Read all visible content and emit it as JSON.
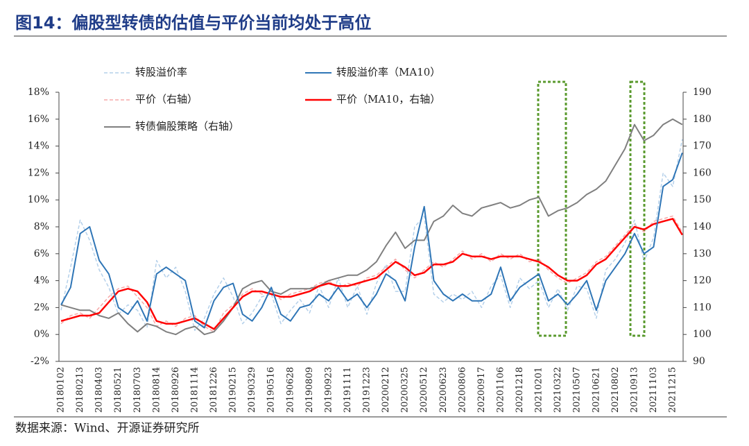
{
  "chart_data": {
    "type": "line",
    "title": "图14：偏股型转债的估值与平价当前均处于高位",
    "source": "数据来源：Wind、开源证券研究所",
    "categories": [
      "20180102",
      null,
      "20180213",
      null,
      "20180403",
      null,
      "20180521",
      null,
      "20180703",
      null,
      "20180814",
      null,
      "20180926",
      null,
      "20181114",
      null,
      "20181226",
      null,
      "20190215",
      null,
      "20190329",
      null,
      "20190516",
      null,
      "20190628",
      null,
      "20190809",
      null,
      "20190923",
      null,
      "20191111",
      null,
      "20191223",
      null,
      "20200212",
      null,
      "20200325",
      null,
      "20200512",
      null,
      "20200623",
      null,
      "20200806",
      null,
      "20200917",
      null,
      "20201106",
      null,
      "20201218",
      null,
      "20210201",
      null,
      "20210322",
      null,
      "20210507",
      null,
      "20210621",
      null,
      "20210802",
      null,
      "20210913",
      null,
      "20211103",
      null,
      "20211215",
      null
    ],
    "series": [
      {
        "name": "转股溢价率",
        "color": "#b4d0ea",
        "dashed": true,
        "axis": "y",
        "width": 1.5,
        "values": [
          1.8,
          5.0,
          8.5,
          7.0,
          4.8,
          3.5,
          1.5,
          2.2,
          1.8,
          0.5,
          5.5,
          4.2,
          5.0,
          3.2,
          0.3,
          1.2,
          3.0,
          4.2,
          2.8,
          0.8,
          1.6,
          2.8,
          3.0,
          0.8,
          1.8,
          2.6,
          1.6,
          3.6,
          2.0,
          4.2,
          2.0,
          3.6,
          1.5,
          3.8,
          5.2,
          3.2,
          3.2,
          8.0,
          8.8,
          3.0,
          2.4,
          3.0,
          2.6,
          3.2,
          2.0,
          3.6,
          4.4,
          2.0,
          4.2,
          3.4,
          4.0,
          2.0,
          3.4,
          1.8,
          3.6,
          3.4,
          1.2,
          4.8,
          5.6,
          6.8,
          8.5,
          5.4,
          7.2,
          12.0,
          11.0,
          14.5
        ]
      },
      {
        "name": "转股溢价率（MA10）",
        "color": "#2e75b6",
        "dashed": false,
        "axis": "y",
        "width": 2,
        "values": [
          2.2,
          3.5,
          7.5,
          8.0,
          5.5,
          4.5,
          2.0,
          1.5,
          2.5,
          1.0,
          4.5,
          5.0,
          4.5,
          4.0,
          1.0,
          0.5,
          2.5,
          3.5,
          3.8,
          1.5,
          1.0,
          2.0,
          3.5,
          1.5,
          1.0,
          2.0,
          2.2,
          3.0,
          2.5,
          3.5,
          2.5,
          3.0,
          2.0,
          3.0,
          4.5,
          4.0,
          2.5,
          6.5,
          9.5,
          4.0,
          3.0,
          2.5,
          3.0,
          2.5,
          2.5,
          3.0,
          5.0,
          2.5,
          3.5,
          4.0,
          4.5,
          2.5,
          3.0,
          2.2,
          3.0,
          4.0,
          1.8,
          4.0,
          5.0,
          6.0,
          7.5,
          6.0,
          6.5,
          11.0,
          11.5,
          13.5
        ]
      },
      {
        "name": "平价（右轴）",
        "color": "#f6a8a8",
        "dashed": true,
        "axis": "y2",
        "width": 1.5,
        "values": [
          104,
          107,
          108,
          106,
          110,
          114,
          117,
          118,
          114,
          110,
          103,
          105,
          103,
          106,
          107,
          103,
          101,
          108,
          111,
          115,
          117,
          115,
          116,
          113,
          115,
          116,
          117,
          119,
          120,
          117,
          119,
          118,
          121,
          122,
          125,
          128,
          124,
          121,
          124,
          127,
          125,
          128,
          131,
          128,
          130,
          127,
          130,
          128,
          130,
          127,
          128,
          124,
          121,
          119,
          121,
          123,
          127,
          129,
          133,
          137,
          141,
          138,
          142,
          143,
          144,
          138
        ]
      },
      {
        "name": "平价（MA10，右轴）",
        "color": "#ff0000",
        "dashed": false,
        "axis": "y2",
        "width": 2.5,
        "values": [
          105,
          106,
          107,
          107,
          108,
          112,
          116,
          117,
          116,
          112,
          105,
          104,
          104,
          105,
          106,
          104,
          102,
          106,
          110,
          114,
          116,
          116,
          115,
          114,
          114,
          115,
          116,
          118,
          119,
          118,
          118,
          119,
          120,
          121,
          124,
          127,
          125,
          122,
          123,
          126,
          126,
          127,
          130,
          129,
          129,
          128,
          129,
          129,
          129,
          128,
          127,
          125,
          122,
          120,
          120,
          122,
          126,
          128,
          132,
          136,
          140,
          139,
          141,
          142,
          143,
          137
        ]
      },
      {
        "name": "转债偏股策略（右轴）",
        "color": "#7f7f7f",
        "dashed": false,
        "axis": "y2",
        "width": 2,
        "values": [
          111,
          110,
          109,
          109,
          107,
          106,
          108,
          104,
          101,
          104,
          103,
          101,
          100,
          102,
          103,
          100,
          101,
          105,
          110,
          117,
          119,
          120,
          116,
          115,
          117,
          117,
          117,
          118,
          120,
          121,
          122,
          122,
          124,
          127,
          133,
          138,
          132,
          135,
          135,
          142,
          144,
          148,
          145,
          144,
          147,
          148,
          149,
          147,
          148,
          150,
          151,
          144,
          146,
          147,
          149,
          152,
          154,
          157,
          163,
          169,
          178,
          172,
          174,
          178,
          180,
          178
        ]
      }
    ],
    "ylim": [
      -2,
      18
    ],
    "yticks": [
      {
        "value": -2,
        "label": "-2%"
      },
      {
        "value": 0,
        "label": "0%"
      },
      {
        "value": 2,
        "label": "2%"
      },
      {
        "value": 4,
        "label": "4%"
      },
      {
        "value": 6,
        "label": "6%"
      },
      {
        "value": 8,
        "label": "8%"
      },
      {
        "value": 10,
        "label": "10%"
      },
      {
        "value": 12,
        "label": "12%"
      },
      {
        "value": 14,
        "label": "14%"
      },
      {
        "value": 16,
        "label": "16%"
      },
      {
        "value": 18,
        "label": "18%"
      }
    ],
    "y2lim": [
      90,
      190
    ],
    "y2ticks": [
      90,
      100,
      110,
      120,
      130,
      140,
      150,
      160,
      170,
      180,
      190
    ]
  }
}
